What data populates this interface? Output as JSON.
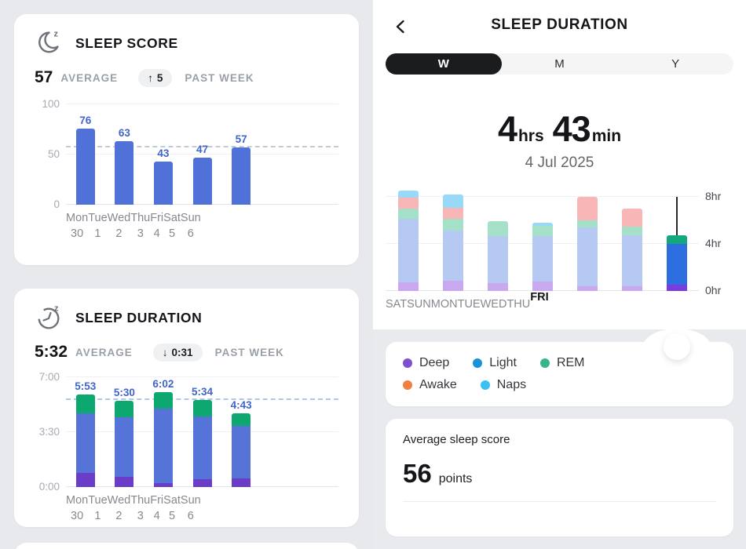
{
  "left_panel": {
    "sleep_score_card": {
      "title": "SLEEP SCORE",
      "average_value": "57",
      "average_label": "AVERAGE",
      "delta_arrow": "↑",
      "delta_value": "5",
      "delta_label": "PAST WEEK"
    },
    "sleep_duration_card": {
      "title": "SLEEP DURATION",
      "average_value": "5:32",
      "average_label": "AVERAGE",
      "delta_arrow": "↓",
      "delta_value": "0:31",
      "delta_label": "PAST WEEK"
    }
  },
  "right_panel": {
    "header": {
      "title": "SLEEP DURATION"
    },
    "range_tabs": [
      {
        "label": "W",
        "selected": true
      },
      {
        "label": "M",
        "selected": false
      },
      {
        "label": "Y",
        "selected": false
      }
    ],
    "summary": {
      "hours": "4",
      "hours_unit": "hrs",
      "minutes": "43",
      "minutes_unit": "min",
      "date": "4 Jul 2025"
    },
    "legend": [
      {
        "label": "Deep",
        "color": "#7e4fd0"
      },
      {
        "label": "Light",
        "color": "#1793d6"
      },
      {
        "label": "REM",
        "color": "#36b48c"
      },
      {
        "label": "Awake",
        "color": "#f08040"
      },
      {
        "label": "Naps",
        "color": "#3ac1f2"
      }
    ],
    "score_summary": {
      "label": "Average sleep score",
      "value": "56",
      "unit": "points"
    }
  },
  "chart_data": [
    {
      "name": "sleep-score-week",
      "type": "bar",
      "title": "SLEEP SCORE",
      "ylim": [
        0,
        100
      ],
      "yticks": [
        0,
        50,
        100
      ],
      "ytick_labels": [
        "0",
        "50",
        "100"
      ],
      "axis": "left",
      "average_line": 57,
      "categories": [
        "Mon|30",
        "Tue|1",
        "Wed|2",
        "Thu|3",
        "Fri|4",
        "Sat|5",
        "Sun|6"
      ],
      "values": [
        76,
        63,
        43,
        47,
        57,
        null,
        null
      ],
      "value_labels": [
        "76",
        "63",
        "43",
        "47",
        "57",
        "",
        ""
      ],
      "colors": {
        "bar": "#5071d8",
        "value_label": "#4064cc",
        "average_line": "#c5c9d4"
      }
    },
    {
      "name": "sleep-duration-week",
      "type": "stacked-bar",
      "title": "SLEEP DURATION",
      "unit": "hours",
      "ylim": [
        0,
        7
      ],
      "yticks": [
        0,
        3.5,
        7
      ],
      "ytick_labels": [
        "0:00",
        "3:30",
        "7:00"
      ],
      "axis": "left",
      "average_line": 5.53,
      "average_line_label": "5:32",
      "categories": [
        "Mon|30",
        "Tue|1",
        "Wed|2",
        "Thu|3",
        "Fri|4",
        "Sat|5",
        "Sun|6"
      ],
      "series": [
        {
          "name": "Deep",
          "values": [
            0.9,
            0.65,
            0.25,
            0.5,
            0.55,
            null,
            null
          ]
        },
        {
          "name": "Light",
          "values": [
            3.8,
            3.8,
            4.75,
            4.0,
            3.35,
            null,
            null
          ]
        },
        {
          "name": "REM",
          "values": [
            1.18,
            1.05,
            1.03,
            1.07,
            0.82,
            null,
            null
          ]
        }
      ],
      "value_labels": [
        "5:53",
        "5:30",
        "6:02",
        "5:34",
        "4:43",
        "",
        ""
      ],
      "colors": {
        "series": {
          "Deep": "#6a3cc8",
          "Light": "#5673d8",
          "REM": "#0ca86f"
        },
        "value_label": "#4064cc",
        "average_line": "#b4c3ea"
      }
    },
    {
      "name": "sleep-stages-daily",
      "type": "stacked-bar",
      "unit": "hours",
      "ylim": [
        0,
        8
      ],
      "yticks": [
        0,
        4,
        8
      ],
      "ytick_labels": [
        "0hr",
        "4hr",
        "8hr"
      ],
      "axis": "right",
      "selected_index": 6,
      "selected_total": "4hrs 43min",
      "categories": [
        "SAT",
        "SUN",
        "MON",
        "TUE",
        "WED",
        "THU",
        "FRI"
      ],
      "series": [
        {
          "name": "Deep",
          "values": [
            0.7,
            0.85,
            0.65,
            0.8,
            0.35,
            0.4,
            0.5
          ]
        },
        {
          "name": "Light",
          "values": [
            5.4,
            4.25,
            4.0,
            3.85,
            5.05,
            4.3,
            3.5
          ]
        },
        {
          "name": "REM",
          "values": [
            0.9,
            1.0,
            1.25,
            0.85,
            0.6,
            0.75,
            0.72
          ]
        },
        {
          "name": "Awake",
          "values": [
            0.9,
            0.95,
            0,
            0,
            1.95,
            1.55,
            0
          ]
        },
        {
          "name": "Naps",
          "values": [
            0.6,
            1.1,
            0,
            0.3,
            0,
            0,
            0
          ]
        }
      ],
      "colors": {
        "muted": {
          "Deep": "#c9a8ef",
          "Light": "#b5c9f2",
          "REM": "#a5e0c8",
          "Awake": "#f8b6b6",
          "Naps": "#97d9f6"
        },
        "selected": {
          "Deep": "#7a3ce0",
          "Light": "#2d6fe0",
          "REM": "#13a97e",
          "Awake": "#f08040",
          "Naps": "#3ac1f2"
        }
      }
    }
  ]
}
